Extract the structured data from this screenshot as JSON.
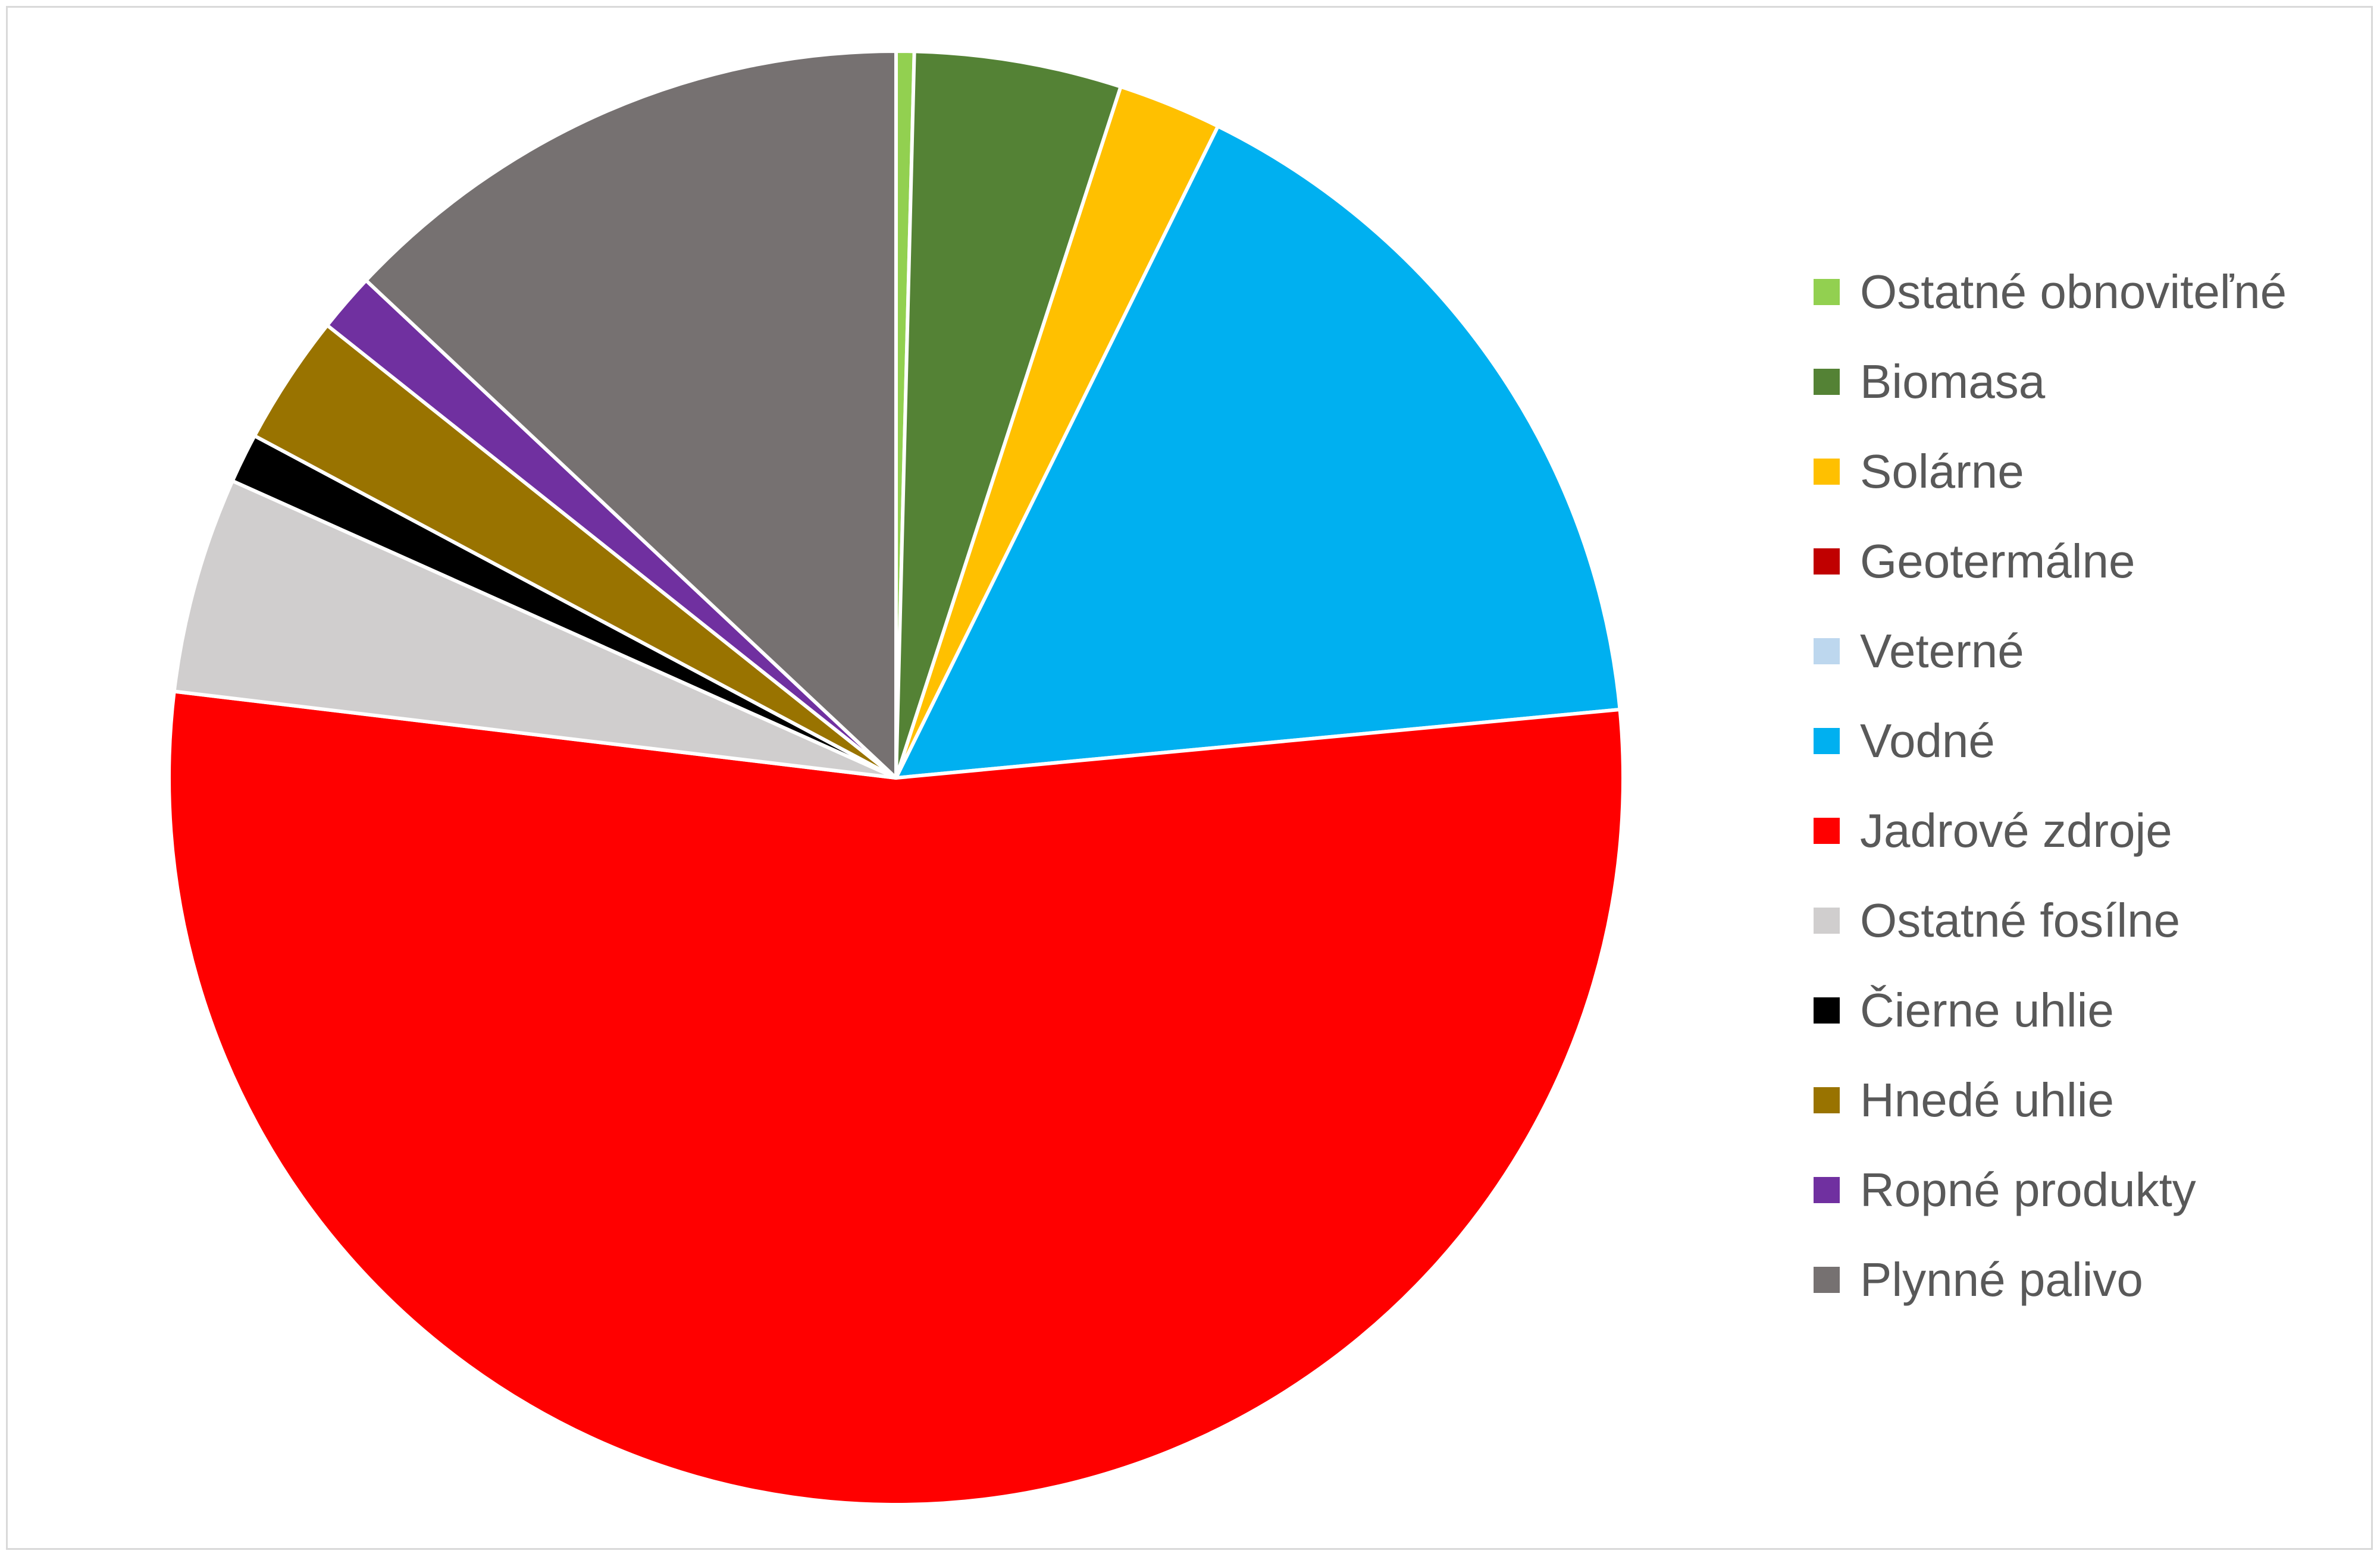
{
  "chart_data": {
    "type": "pie",
    "title": "",
    "legend_position": "right",
    "start_angle": "12 o'clock, clockwise",
    "categories": [
      "Ostatné obnoviteľné",
      "Biomasa",
      "Solárne",
      "Geotermálne",
      "Veterné",
      "Vodné",
      "Jadrové zdroje",
      "Ostatné fosílne",
      "Čierne uhlie",
      "Hnedé uhlie",
      "Ropné produkty",
      "Plynné palivo"
    ],
    "values": [
      0.4,
      4.6,
      2.3,
      0.0,
      0.0,
      16.2,
      53.4,
      4.8,
      1.1,
      2.9,
      1.3,
      13.0
    ],
    "colors": [
      "#92d050",
      "#548235",
      "#ffc000",
      "#c00000",
      "#bdd7ee",
      "#00b0f0",
      "#ff0000",
      "#d0cece",
      "#000000",
      "#997300",
      "#7030a0",
      "#767171"
    ]
  }
}
